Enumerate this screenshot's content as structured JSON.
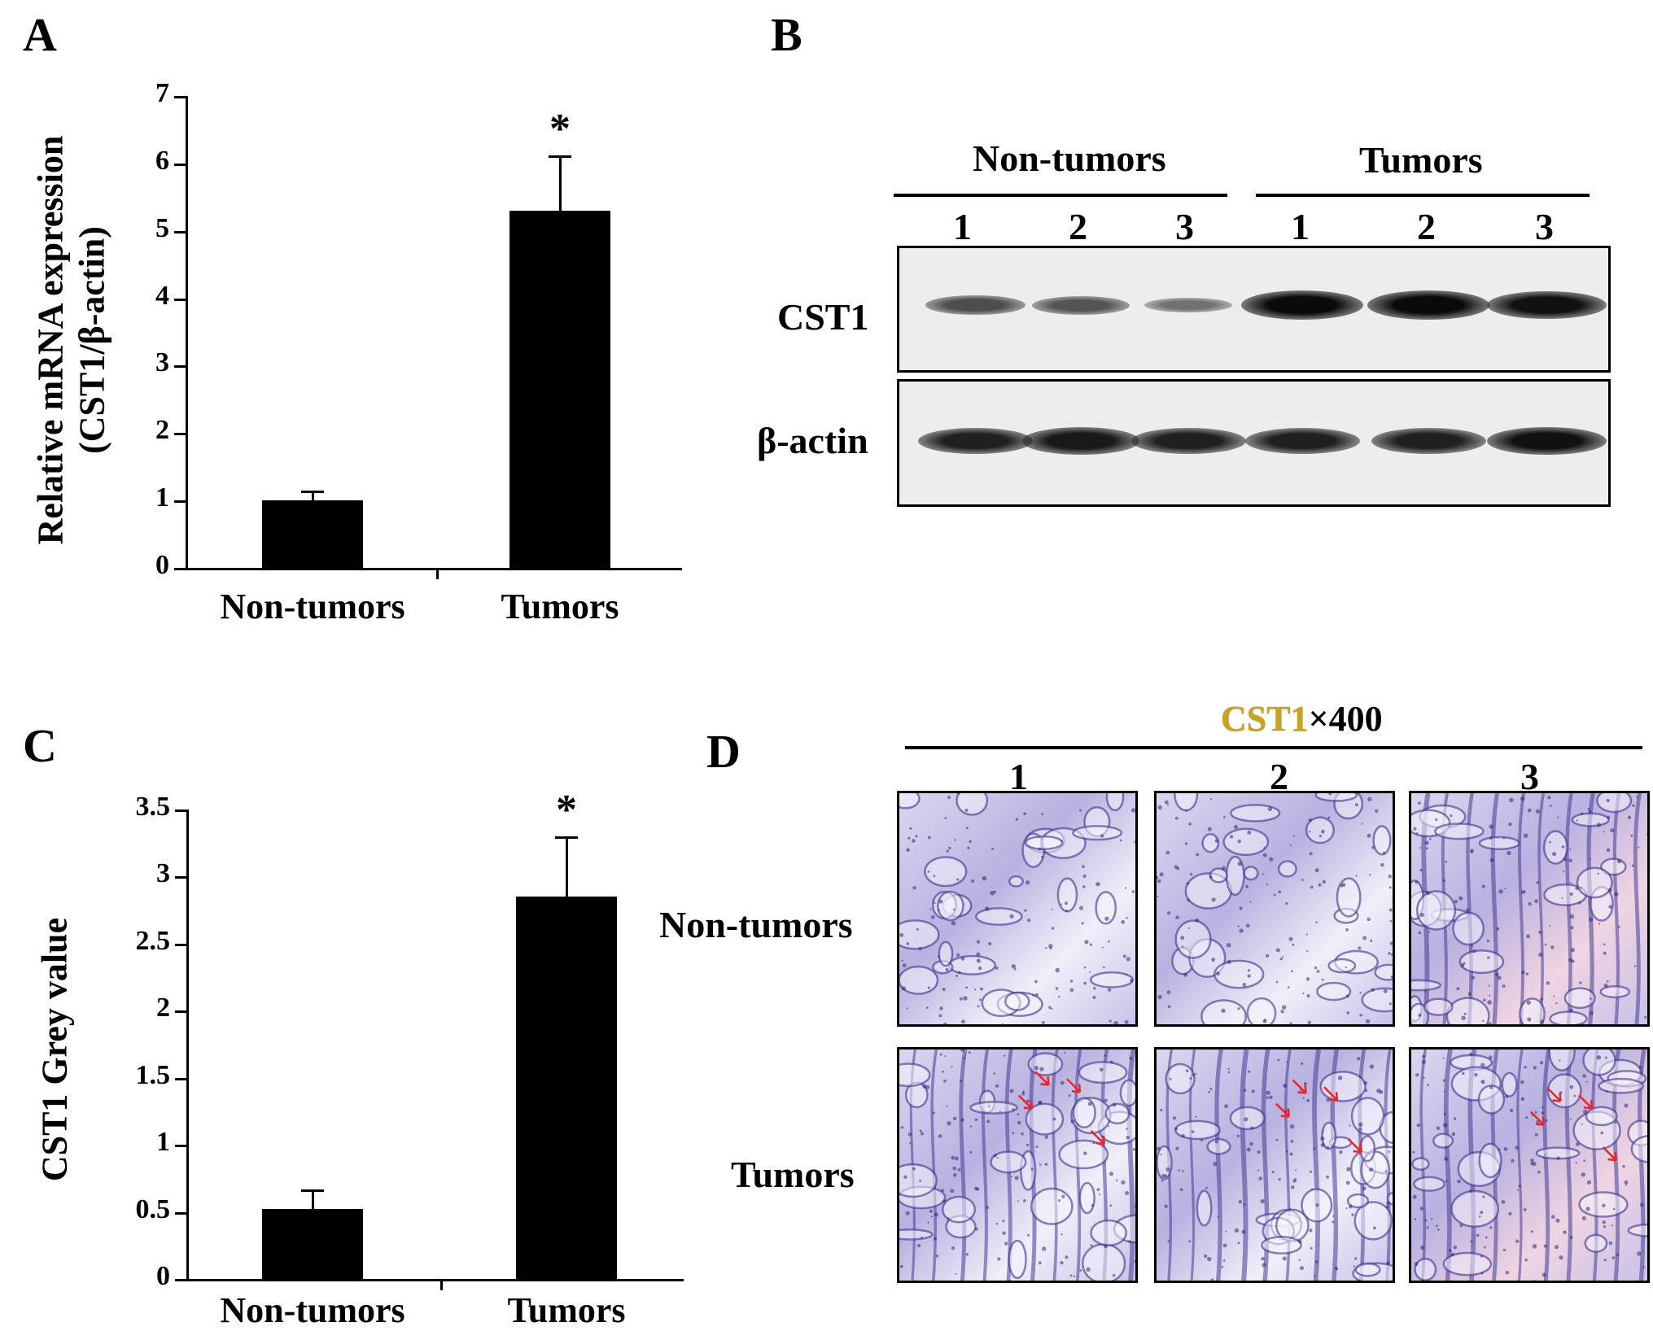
{
  "panels": {
    "a": {
      "letter": "A"
    },
    "b": {
      "letter": "B"
    },
    "c": {
      "letter": "C"
    },
    "d": {
      "letter": "D"
    }
  },
  "chart_data": [
    {
      "type": "bar",
      "panel": "A",
      "categories": [
        "Non-tumors",
        "Tumors"
      ],
      "values": [
        1.0,
        5.3
      ],
      "error": [
        0.15,
        0.82
      ],
      "significance": [
        "",
        "*"
      ],
      "ylabel_line1": "Relative  mRNA expression",
      "ylabel_line2": "(CST1/β-actin)",
      "ylim": [
        0,
        7
      ],
      "yticks": [
        0,
        1,
        2,
        3,
        4,
        5,
        6,
        7
      ],
      "ytick_labels": [
        "0",
        "1",
        "2",
        "3",
        "4",
        "5",
        "6",
        "7"
      ],
      "bar_color": "#000000",
      "grid": false
    },
    {
      "type": "bar",
      "panel": "C",
      "categories": [
        "Non-tumors",
        "Tumors"
      ],
      "values": [
        0.52,
        2.85
      ],
      "error": [
        0.15,
        0.45
      ],
      "significance": [
        "",
        "*"
      ],
      "ylabel": "CST1 Grey value",
      "ylim": [
        0,
        3.5
      ],
      "yticks": [
        0,
        0.5,
        1,
        1.5,
        2,
        2.5,
        3,
        3.5
      ],
      "ytick_labels": [
        "0",
        "0.5",
        "1",
        "1.5",
        "2",
        "2.5",
        "3",
        "3.5"
      ],
      "bar_color": "#000000",
      "grid": false
    }
  ],
  "blot": {
    "group_labels": [
      "Non-tumors",
      "Tumors"
    ],
    "lanes": [
      "1",
      "2",
      "3",
      "1",
      "2",
      "3"
    ],
    "rows": [
      {
        "label": "CST1",
        "intensity": [
          0.55,
          0.5,
          0.3,
          1.0,
          1.0,
          0.95
        ]
      },
      {
        "label": "β-actin",
        "intensity": [
          0.85,
          0.9,
          0.85,
          0.85,
          0.85,
          0.95
        ]
      }
    ]
  },
  "ihc": {
    "stain": "CST1",
    "magnification": "×400",
    "stain_color": "#c9a21f",
    "columns": [
      "1",
      "2",
      "3"
    ],
    "rows": [
      "Non-tumors",
      "Tumors"
    ],
    "arrow_color": "#e8262a"
  }
}
